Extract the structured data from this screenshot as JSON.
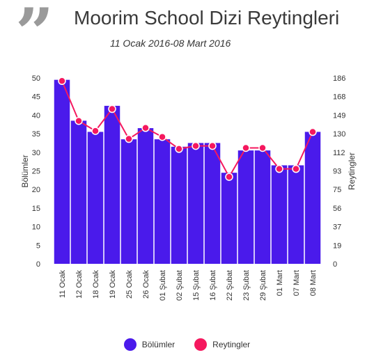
{
  "header": {
    "quote_mark": "”",
    "title": "Moorim School Dizi Reytingleri",
    "subtitle": "11 Ocak 2016-08 Mart 2016"
  },
  "chart_data": {
    "type": "bar",
    "categories": [
      "11 Ocak",
      "12 Ocak",
      "18 Ocak",
      "19 Ocak",
      "25 Ocak",
      "26 Ocak",
      "01 Şubat",
      "02 Şubat",
      "15 Şubat",
      "16 Şubat",
      "22 Şubat",
      "23 Şubat",
      "29 Şubat",
      "01 Mart",
      "07 Mart",
      "08 Mart"
    ],
    "series": [
      {
        "name": "Bölümler",
        "type": "bar",
        "axis": "left",
        "color": "#4a1aeb",
        "values": [
          49.5,
          38.5,
          35.5,
          42.5,
          33.5,
          36.5,
          33.5,
          31.5,
          32.5,
          32.5,
          24.5,
          30.5,
          30.5,
          26.5,
          26.5,
          35.5
        ]
      },
      {
        "name": "Reytingler",
        "type": "line",
        "axis": "right",
        "color": "#f5185e",
        "values": [
          183,
          143,
          133,
          155,
          125,
          136,
          127,
          115,
          118,
          118,
          87,
          116,
          116,
          95,
          95,
          132
        ]
      }
    ],
    "xlabel": "",
    "ylabel_left": "Bölümler",
    "ylabel_right": "Reytingler",
    "ylim_left": [
      0,
      50
    ],
    "yticks_left": [
      "0",
      "5",
      "10",
      "15",
      "20",
      "25",
      "30",
      "35",
      "40",
      "45",
      "50"
    ],
    "yticks_right": [
      "0",
      "19",
      "37",
      "56",
      "75",
      "93",
      "112",
      "130",
      "149",
      "168",
      "186"
    ],
    "ylim_right": [
      0,
      186
    ],
    "grid": false,
    "legend": "bottom-center"
  }
}
